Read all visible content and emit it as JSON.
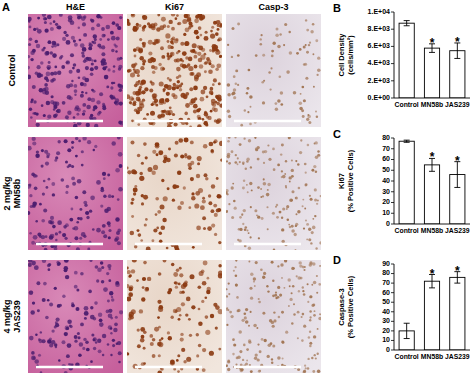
{
  "panel_a": {
    "label": "A",
    "columns": [
      "H&E",
      "Ki67",
      "Casp-3"
    ],
    "rows": [
      [
        "Control"
      ],
      [
        "2 mg/kg",
        "MN58b"
      ],
      [
        "4 mg/kg",
        "JAS239"
      ]
    ]
  },
  "chart_data": [
    {
      "type": "bar",
      "title": "B",
      "y_label": [
        "Cell Density",
        "(cells/mm²)"
      ],
      "categories": [
        "Control",
        "MN58b",
        "JAS239"
      ],
      "values": [
        8700,
        5800,
        5500
      ],
      "errors": [
        300,
        500,
        900
      ],
      "color": "#ffffff",
      "ylim": [
        0,
        10000
      ],
      "yticks": [
        {
          "value": 0,
          "label": "0.E+00"
        },
        {
          "value": 2000,
          "label": "2.E+03"
        },
        {
          "value": 4000,
          "label": "4.E+03"
        },
        {
          "value": 6000,
          "label": "6.E+03"
        },
        {
          "value": 8000,
          "label": "8.E+03"
        },
        {
          "value": 10000,
          "label": "1.E+04"
        }
      ],
      "grid": false,
      "annotations": [
        {
          "category": "MN58b",
          "text": "*"
        },
        {
          "category": "JAS239",
          "text": "*"
        }
      ]
    },
    {
      "type": "bar",
      "title": "C",
      "y_label": [
        "Ki67",
        "(% Positive Cells)"
      ],
      "categories": [
        "Control",
        "MN58b",
        "JAS239"
      ],
      "values": [
        77,
        55,
        46
      ],
      "errors": [
        1,
        6,
        12
      ],
      "color": "#ffffff",
      "ylim": [
        0,
        80
      ],
      "yticks": [
        0,
        10,
        20,
        30,
        40,
        50,
        60,
        70,
        80
      ],
      "grid": false,
      "annotations": [
        {
          "category": "MN58b",
          "text": "*"
        },
        {
          "category": "JAS239",
          "text": "*"
        }
      ]
    },
    {
      "type": "bar",
      "title": "D",
      "y_label": [
        "Caspase-3",
        "(% Positive Cells)"
      ],
      "categories": [
        "Control",
        "MN58b",
        "JAS239"
      ],
      "values": [
        20,
        72,
        76
      ],
      "errors": [
        8,
        7,
        6
      ],
      "color": "#ffffff",
      "ylim": [
        0,
        90
      ],
      "yticks": [
        0,
        10,
        20,
        30,
        40,
        50,
        60,
        70,
        80,
        90
      ],
      "grid": false,
      "annotations": [
        {
          "category": "MN58b",
          "text": "*"
        },
        {
          "category": "JAS239",
          "text": "*"
        }
      ]
    }
  ]
}
